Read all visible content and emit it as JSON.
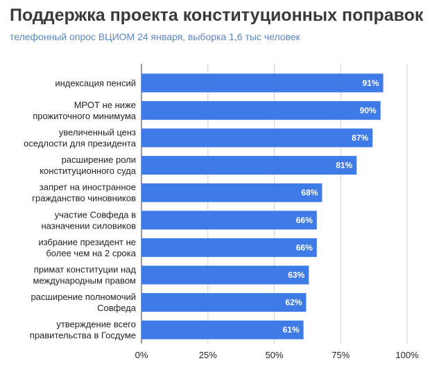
{
  "title": "Поддержка проекта конституционных поправок",
  "subtitle": "телефонный опрос ВЦИОМ 24 января, выборка 1,6 тыс человек",
  "colors": {
    "bar": "#3f7be6",
    "grid": "#cfcfcf",
    "axis": "#333333",
    "title": "#3a3a3a",
    "subtitle": "#5a86c6"
  },
  "chart_data": {
    "type": "bar",
    "orientation": "horizontal",
    "categories": [
      [
        "индексация пенсий"
      ],
      [
        "МРОТ не ниже",
        "прожиточного минимума"
      ],
      [
        "увеличенный ценз",
        "оседлости для президента"
      ],
      [
        "расширение роли",
        "конституционного суда"
      ],
      [
        "запрет на иностранное",
        "гражданство чиновников"
      ],
      [
        "участие Совфеда в",
        "назначении силовиков"
      ],
      [
        "избрание президент не",
        "более чем на 2 срока"
      ],
      [
        "примат конституции над",
        "международным правом"
      ],
      [
        "расширение полномочий",
        "Совфеда"
      ],
      [
        "утверждение всего",
        "правительства в Госдуме"
      ]
    ],
    "values": [
      91,
      90,
      87,
      81,
      68,
      66,
      66,
      63,
      62,
      61
    ],
    "value_labels": [
      "91%",
      "90%",
      "87%",
      "81%",
      "68%",
      "66%",
      "66%",
      "63%",
      "62%",
      "61%"
    ],
    "xlim": [
      0,
      100
    ],
    "ticks": [
      0,
      25,
      50,
      75,
      100
    ],
    "tick_labels": [
      "0%",
      "25%",
      "50%",
      "75%",
      "100%"
    ],
    "grid": true,
    "legend": "none"
  }
}
